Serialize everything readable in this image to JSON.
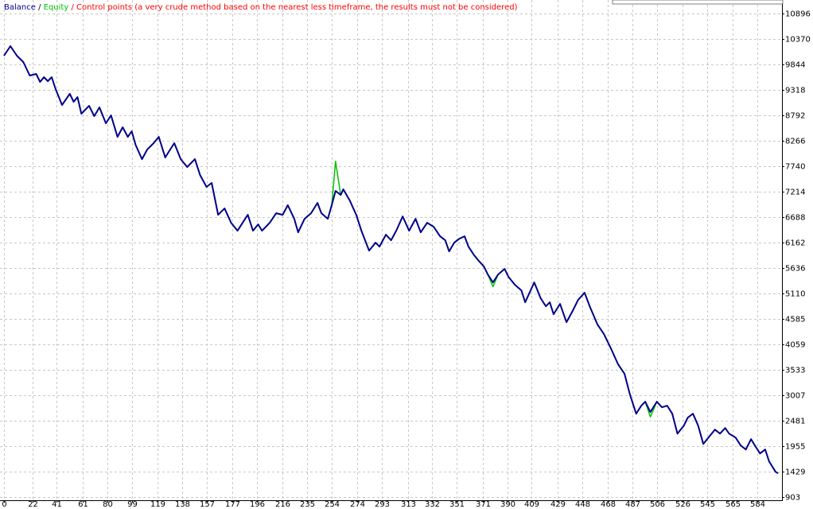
{
  "chart_data": {
    "type": "line",
    "legend": {
      "separator": "/",
      "note": "Control points (a very crude method based on the nearest less timeframe, the results must not be considered)",
      "note_color": "#ff0000"
    },
    "x": [
      0,
      5,
      10,
      15,
      20,
      25,
      28,
      31,
      34,
      37,
      40,
      45,
      51,
      54,
      57,
      60,
      66,
      70,
      74,
      79,
      83,
      88,
      92,
      96,
      99,
      102,
      107,
      111,
      116,
      120,
      125,
      128,
      132,
      137,
      142,
      145,
      148,
      152,
      157,
      161,
      166,
      171,
      176,
      181,
      185,
      189,
      193,
      197,
      200,
      206,
      211,
      216,
      220,
      225,
      228,
      233,
      238,
      243,
      246,
      251,
      254,
      257,
      261,
      263,
      268,
      273,
      277,
      283,
      288,
      291,
      296,
      300,
      304,
      309,
      314,
      319,
      323,
      328,
      333,
      338,
      342,
      345,
      349,
      353,
      357,
      360,
      364,
      368,
      372,
      375,
      379,
      383,
      388,
      391,
      396,
      401,
      404,
      409,
      411,
      416,
      420,
      423,
      426,
      431,
      436,
      441,
      445,
      450,
      454,
      460,
      465,
      471,
      476,
      481,
      485,
      490,
      494,
      497,
      501,
      506,
      510,
      514,
      518,
      522,
      527,
      530,
      534,
      538,
      542,
      547,
      551,
      555,
      559,
      562,
      567,
      571,
      575,
      579,
      582,
      586,
      590,
      593,
      598,
      600
    ],
    "series": [
      {
        "name": "Equity",
        "color": "#00c000",
        "values": [
          10024,
          10221,
          10024,
          9893,
          9613,
          9646,
          9482,
          9580,
          9498,
          9580,
          9334,
          9005,
          9235,
          9071,
          9169,
          8824,
          8988,
          8775,
          8956,
          8627,
          8791,
          8347,
          8545,
          8347,
          8462,
          8183,
          7887,
          8084,
          8216,
          8347,
          7920,
          8051,
          8216,
          7887,
          7723,
          7805,
          7887,
          7558,
          7312,
          7394,
          6736,
          6868,
          6572,
          6407,
          6572,
          6736,
          6407,
          6539,
          6407,
          6572,
          6769,
          6736,
          6934,
          6654,
          6374,
          6654,
          6769,
          6983,
          6769,
          6654,
          6934,
          7840,
          7147,
          7262,
          7032,
          6736,
          6407,
          5996,
          6161,
          6079,
          6325,
          6210,
          6407,
          6703,
          6407,
          6654,
          6374,
          6572,
          6490,
          6292,
          6210,
          5980,
          6161,
          6243,
          6292,
          6079,
          5914,
          5783,
          5668,
          5503,
          5250,
          5503,
          5618,
          5454,
          5289,
          5174,
          4928,
          5224,
          5339,
          5010,
          4846,
          4928,
          4681,
          4895,
          4517,
          4763,
          4977,
          5125,
          4846,
          4467,
          4270,
          3941,
          3646,
          3448,
          3037,
          2626,
          2791,
          2873,
          2560,
          2873,
          2758,
          2791,
          2626,
          2215,
          2380,
          2544,
          2626,
          2380,
          2001,
          2166,
          2297,
          2215,
          2330,
          2215,
          2133,
          1969,
          1886,
          2100,
          1969,
          1804,
          1886,
          1640,
          1426,
          1393
        ]
      },
      {
        "name": "Balance",
        "color": "#00008b",
        "values": [
          10024,
          10221,
          10024,
          9893,
          9613,
          9646,
          9482,
          9580,
          9498,
          9580,
          9334,
          9005,
          9235,
          9071,
          9169,
          8824,
          8988,
          8775,
          8956,
          8627,
          8791,
          8347,
          8545,
          8347,
          8462,
          8183,
          7887,
          8084,
          8216,
          8347,
          7920,
          8051,
          8216,
          7887,
          7723,
          7805,
          7887,
          7558,
          7312,
          7394,
          6736,
          6868,
          6572,
          6407,
          6572,
          6736,
          6407,
          6539,
          6407,
          6572,
          6769,
          6736,
          6934,
          6654,
          6374,
          6654,
          6769,
          6983,
          6769,
          6654,
          6934,
          7229,
          7147,
          7262,
          7032,
          6736,
          6407,
          5996,
          6161,
          6079,
          6325,
          6210,
          6407,
          6703,
          6407,
          6654,
          6374,
          6572,
          6490,
          6292,
          6210,
          5980,
          6161,
          6243,
          6292,
          6079,
          5914,
          5783,
          5668,
          5503,
          5339,
          5503,
          5618,
          5454,
          5289,
          5174,
          4928,
          5224,
          5339,
          5010,
          4846,
          4928,
          4681,
          4895,
          4517,
          4763,
          4977,
          5125,
          4846,
          4467,
          4270,
          3941,
          3646,
          3448,
          3037,
          2626,
          2791,
          2873,
          2659,
          2873,
          2758,
          2791,
          2626,
          2215,
          2380,
          2544,
          2626,
          2380,
          2001,
          2166,
          2297,
          2215,
          2330,
          2215,
          2133,
          1969,
          1886,
          2100,
          1969,
          1804,
          1886,
          1640,
          1426,
          1393
        ]
      }
    ],
    "xlim": [
      0,
      603
    ],
    "ylim": [
      837,
      11175
    ],
    "xticks": [
      0,
      22,
      41,
      61,
      80,
      99,
      119,
      138,
      157,
      177,
      196,
      216,
      235,
      254,
      274,
      293,
      313,
      332,
      351,
      371,
      390,
      409,
      429,
      448,
      468,
      487,
      506,
      526,
      545,
      565,
      584
    ],
    "yticks": [
      903,
      1429,
      1955,
      2481,
      3007,
      3533,
      4059,
      4585,
      5110,
      5636,
      6162,
      6688,
      7214,
      7740,
      8266,
      8792,
      9318,
      9844,
      10370,
      10896
    ],
    "grid": true
  }
}
